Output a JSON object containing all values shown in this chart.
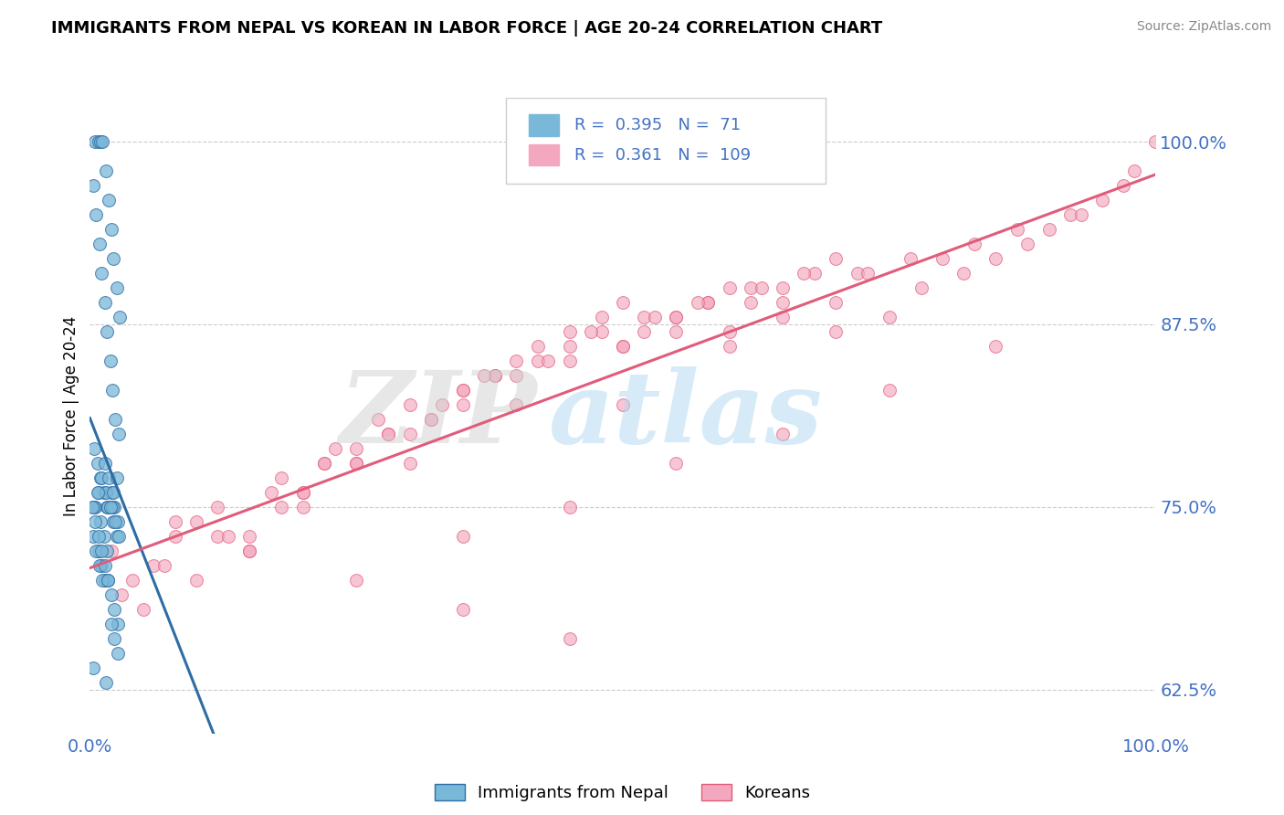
{
  "title": "IMMIGRANTS FROM NEPAL VS KOREAN IN LABOR FORCE | AGE 20-24 CORRELATION CHART",
  "source_text": "Source: ZipAtlas.com",
  "ylabel": "In Labor Force | Age 20-24",
  "xlim": [
    0.0,
    1.0
  ],
  "ylim": [
    0.595,
    1.03
  ],
  "yticks": [
    0.625,
    0.75,
    0.875,
    1.0
  ],
  "ytick_labels": [
    "62.5%",
    "75.0%",
    "87.5%",
    "100.0%"
  ],
  "r_nepal": 0.395,
  "n_nepal": 71,
  "r_korean": 0.361,
  "n_korean": 109,
  "color_nepal": "#7ab8d9",
  "color_korean": "#f4a8bf",
  "trendline_nepal": "#2e6da4",
  "trendline_korean": "#e05c7a",
  "nepal_x": [
    0.005,
    0.008,
    0.01,
    0.012,
    0.015,
    0.018,
    0.02,
    0.022,
    0.025,
    0.028,
    0.003,
    0.006,
    0.009,
    0.011,
    0.014,
    0.016,
    0.019,
    0.021,
    0.024,
    0.027,
    0.004,
    0.007,
    0.01,
    0.013,
    0.016,
    0.019,
    0.022,
    0.025,
    0.008,
    0.011,
    0.014,
    0.017,
    0.02,
    0.023,
    0.026,
    0.005,
    0.008,
    0.011,
    0.014,
    0.017,
    0.02,
    0.023,
    0.026,
    0.003,
    0.006,
    0.009,
    0.012,
    0.015,
    0.018,
    0.021,
    0.024,
    0.027,
    0.004,
    0.007,
    0.01,
    0.013,
    0.016,
    0.019,
    0.022,
    0.025,
    0.002,
    0.005,
    0.008,
    0.011,
    0.014,
    0.017,
    0.02,
    0.023,
    0.026,
    0.003,
    0.015
  ],
  "nepal_y": [
    1.0,
    1.0,
    1.0,
    1.0,
    0.98,
    0.96,
    0.94,
    0.92,
    0.9,
    0.88,
    0.97,
    0.95,
    0.93,
    0.91,
    0.89,
    0.87,
    0.85,
    0.83,
    0.81,
    0.8,
    0.79,
    0.78,
    0.77,
    0.76,
    0.75,
    0.75,
    0.74,
    0.73,
    0.72,
    0.71,
    0.7,
    0.7,
    0.69,
    0.68,
    0.67,
    0.75,
    0.76,
    0.77,
    0.78,
    0.75,
    0.76,
    0.75,
    0.74,
    0.73,
    0.72,
    0.71,
    0.7,
    0.76,
    0.77,
    0.75,
    0.74,
    0.73,
    0.75,
    0.76,
    0.74,
    0.73,
    0.72,
    0.75,
    0.76,
    0.77,
    0.75,
    0.74,
    0.73,
    0.72,
    0.71,
    0.7,
    0.67,
    0.66,
    0.65,
    0.64,
    0.63
  ],
  "korean_x": [
    0.02,
    0.04,
    0.06,
    0.08,
    0.1,
    0.12,
    0.15,
    0.18,
    0.2,
    0.22,
    0.25,
    0.28,
    0.3,
    0.32,
    0.35,
    0.38,
    0.4,
    0.42,
    0.45,
    0.48,
    0.5,
    0.52,
    0.55,
    0.58,
    0.6,
    0.62,
    0.65,
    0.68,
    0.7,
    0.72,
    0.75,
    0.78,
    0.8,
    0.82,
    0.85,
    0.88,
    0.9,
    0.92,
    0.95,
    0.98,
    1.0,
    0.05,
    0.1,
    0.15,
    0.2,
    0.25,
    0.3,
    0.35,
    0.4,
    0.45,
    0.5,
    0.55,
    0.6,
    0.65,
    0.7,
    0.08,
    0.12,
    0.18,
    0.22,
    0.28,
    0.32,
    0.38,
    0.42,
    0.48,
    0.52,
    0.58,
    0.62,
    0.03,
    0.07,
    0.13,
    0.17,
    0.23,
    0.27,
    0.33,
    0.37,
    0.43,
    0.47,
    0.53,
    0.57,
    0.63,
    0.67,
    0.73,
    0.77,
    0.83,
    0.87,
    0.93,
    0.97,
    0.2,
    0.35,
    0.5,
    0.65,
    0.45,
    0.55,
    0.3,
    0.4,
    0.25,
    0.15,
    0.7,
    0.6,
    0.5,
    0.35,
    0.45,
    0.55,
    0.65,
    0.75,
    0.85,
    0.25,
    0.35,
    0.45
  ],
  "korean_y": [
    0.72,
    0.7,
    0.71,
    0.73,
    0.74,
    0.73,
    0.72,
    0.75,
    0.76,
    0.78,
    0.79,
    0.8,
    0.82,
    0.81,
    0.83,
    0.84,
    0.85,
    0.86,
    0.87,
    0.88,
    0.89,
    0.87,
    0.88,
    0.89,
    0.9,
    0.89,
    0.9,
    0.91,
    0.92,
    0.91,
    0.88,
    0.9,
    0.92,
    0.91,
    0.92,
    0.93,
    0.94,
    0.95,
    0.96,
    0.98,
    1.0,
    0.68,
    0.7,
    0.72,
    0.75,
    0.78,
    0.8,
    0.82,
    0.84,
    0.86,
    0.86,
    0.88,
    0.87,
    0.88,
    0.89,
    0.74,
    0.75,
    0.77,
    0.78,
    0.8,
    0.81,
    0.84,
    0.85,
    0.87,
    0.88,
    0.89,
    0.9,
    0.69,
    0.71,
    0.73,
    0.76,
    0.79,
    0.81,
    0.82,
    0.84,
    0.85,
    0.87,
    0.88,
    0.89,
    0.9,
    0.91,
    0.91,
    0.92,
    0.93,
    0.94,
    0.95,
    0.97,
    0.76,
    0.83,
    0.86,
    0.89,
    0.85,
    0.87,
    0.78,
    0.82,
    0.78,
    0.73,
    0.87,
    0.86,
    0.82,
    0.73,
    0.75,
    0.78,
    0.8,
    0.83,
    0.86,
    0.7,
    0.68,
    0.66
  ]
}
